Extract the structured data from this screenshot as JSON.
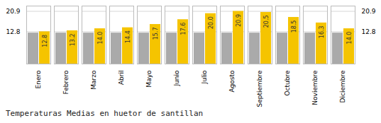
{
  "chart_data": {
    "type": "bar",
    "title": "Temperaturas Medias en huetor de santillan",
    "categories": [
      "Enero",
      "Febrero",
      "Marzo",
      "Abril",
      "Mayo",
      "Junio",
      "Julio",
      "Agosto",
      "Septiembre",
      "Octubre",
      "Noviembre",
      "Diciembre"
    ],
    "series": [
      {
        "color": "#AAAAAA",
        "values": [
          12.3,
          12.3,
          12.3,
          12.3,
          12.3,
          12.3,
          12.3,
          12.3,
          12.3,
          12.3,
          12.3,
          12.3
        ]
      },
      {
        "color": "#F5C400",
        "values": [
          12.8,
          13.2,
          14.0,
          14.4,
          15.7,
          17.6,
          20.0,
          20.9,
          20.5,
          18.5,
          16.3,
          14.0
        ],
        "data_labels": true,
        "value_labels": [
          "12.8",
          "13.2",
          "14.0",
          "14.4",
          "15.7",
          "17.6",
          "20.0",
          "20.9",
          "20.5",
          "18.5",
          "16.3",
          "14.0"
        ]
      }
    ],
    "ylim": [
      0,
      23.0
    ],
    "yticks": [
      12.8,
      20.9
    ],
    "y2lim": [
      0,
      23.0
    ],
    "y2ticks": [
      12.8,
      20.9
    ],
    "grid": true
  }
}
